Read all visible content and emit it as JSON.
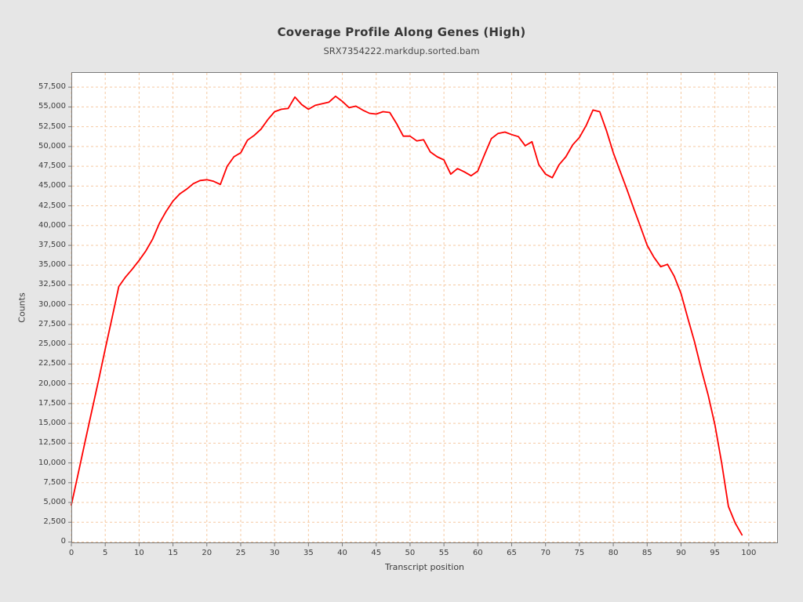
{
  "colors": {
    "figure_background": "#e6e6e6",
    "plot_background": "#ffffff",
    "grid": "#f5c9a2",
    "line": "#ff0000",
    "plot_border": "#7a7a7a",
    "tick": "#7a7a7a",
    "text": "#3d3d3d",
    "title_text": "#373737"
  },
  "chart_data": {
    "type": "line",
    "title": "Coverage Profile Along Genes (High)",
    "subtitle": "SRX7354222.markdup.sorted.bam",
    "xlabel": "Transcript position",
    "ylabel": "Counts",
    "legend": "none",
    "grid": "dashed",
    "series_name": "coverage",
    "x": [
      0,
      1,
      2,
      3,
      4,
      5,
      6,
      7,
      8,
      9,
      10,
      11,
      12,
      13,
      14,
      15,
      16,
      17,
      18,
      19,
      20,
      21,
      22,
      23,
      24,
      25,
      26,
      27,
      28,
      29,
      30,
      31,
      32,
      33,
      34,
      35,
      36,
      37,
      38,
      39,
      40,
      41,
      42,
      43,
      44,
      45,
      46,
      47,
      48,
      49,
      50,
      51,
      52,
      53,
      54,
      55,
      56,
      57,
      58,
      59,
      60,
      61,
      62,
      63,
      64,
      65,
      66,
      67,
      68,
      69,
      70,
      71,
      72,
      73,
      74,
      75,
      76,
      77,
      78,
      79,
      80,
      81,
      82,
      83,
      84,
      85,
      86,
      87,
      88,
      89,
      90,
      91,
      92,
      93,
      94,
      95,
      96,
      97,
      98,
      99
    ],
    "values": [
      4700,
      8600,
      12600,
      16500,
      20400,
      24400,
      28300,
      32300,
      33500,
      34500,
      35600,
      36800,
      38300,
      40300,
      41800,
      43100,
      44000,
      44600,
      45300,
      45700,
      45800,
      45600,
      45200,
      47500,
      48700,
      49200,
      50800,
      51400,
      52200,
      53400,
      54400,
      54700,
      54800,
      56250,
      55300,
      54700,
      55200,
      55400,
      55600,
      56350,
      55700,
      54900,
      55100,
      54600,
      54200,
      54100,
      54400,
      54300,
      52900,
      51300,
      51300,
      50700,
      50850,
      49300,
      48700,
      48300,
      46500,
      47200,
      46800,
      46300,
      46900,
      49000,
      51000,
      51650,
      51820,
      51500,
      51250,
      50100,
      50600,
      47700,
      46500,
      46050,
      47700,
      48700,
      50200,
      51150,
      52650,
      54600,
      54400,
      52000,
      49200,
      46900,
      44600,
      42200,
      39900,
      37500,
      36000,
      34800,
      35100,
      33600,
      31400,
      28300,
      25300,
      21800,
      18600,
      14800,
      10000,
      4500,
      2400,
      900
    ],
    "x_ticks": [
      0,
      5,
      10,
      15,
      20,
      25,
      30,
      35,
      40,
      45,
      50,
      55,
      60,
      65,
      70,
      75,
      80,
      85,
      90,
      95,
      100
    ],
    "y_ticks": [
      0,
      2500,
      5000,
      7500,
      10000,
      12500,
      15000,
      17500,
      20000,
      22500,
      25000,
      27500,
      30000,
      32500,
      35000,
      37500,
      40000,
      42500,
      45000,
      47500,
      50000,
      52500,
      55000,
      57500
    ],
    "y_tick_labels": [
      "0",
      "2,500",
      "5,000",
      "7,500",
      "10,000",
      "12,500",
      "15,000",
      "17,500",
      "20,000",
      "22,500",
      "25,000",
      "27,500",
      "30,000",
      "32,500",
      "35,000",
      "37,500",
      "40,000",
      "42,500",
      "45,000",
      "47,500",
      "50,000",
      "52,500",
      "55,000",
      "57,500"
    ],
    "xlim": [
      0,
      104.3
    ],
    "ylim": [
      -150,
      59400
    ]
  }
}
